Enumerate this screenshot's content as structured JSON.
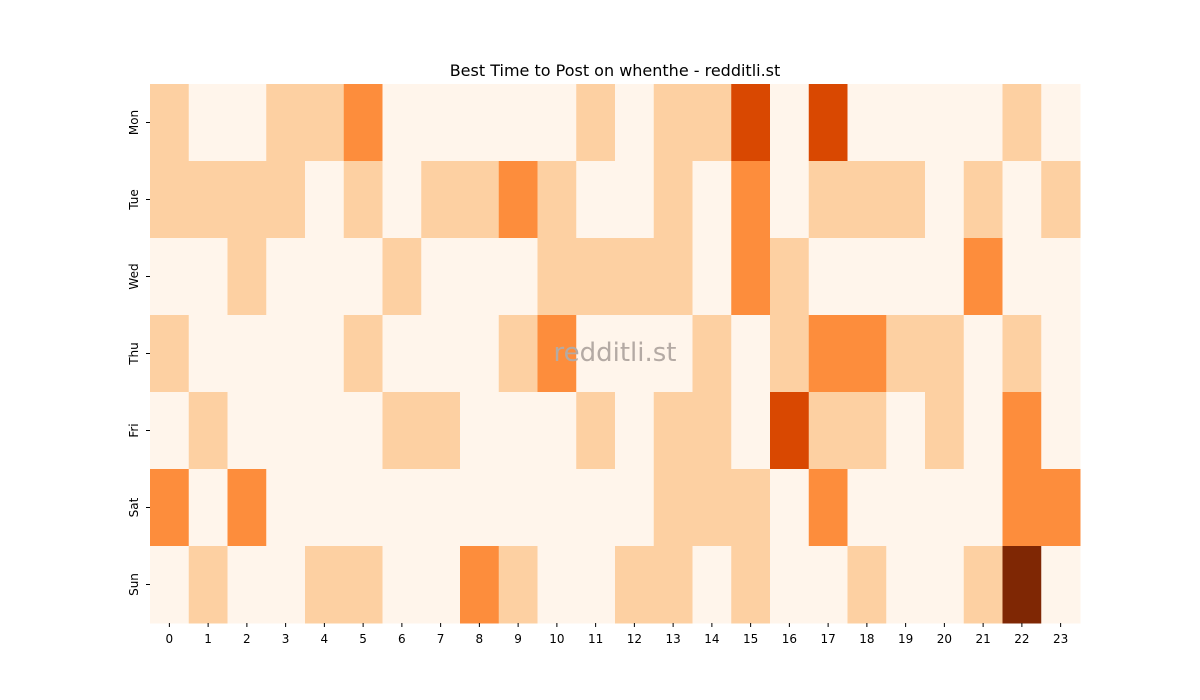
{
  "chart_data": {
    "type": "heatmap",
    "title": "Best Time to Post on whenthe - redditli.st",
    "watermark": "redditli.st",
    "x_categories": [
      "0",
      "1",
      "2",
      "3",
      "4",
      "5",
      "6",
      "7",
      "8",
      "9",
      "10",
      "11",
      "12",
      "13",
      "14",
      "15",
      "16",
      "17",
      "18",
      "19",
      "20",
      "21",
      "22",
      "23"
    ],
    "y_categories": [
      "Mon",
      "Tue",
      "Wed",
      "Thu",
      "Fri",
      "Sat",
      "Sun"
    ],
    "values": [
      [
        1,
        0,
        0,
        1,
        1,
        2,
        0,
        0,
        0,
        0,
        0,
        1,
        0,
        1,
        1,
        3,
        0,
        3,
        0,
        0,
        0,
        0,
        1,
        0
      ],
      [
        1,
        1,
        1,
        1,
        0,
        1,
        0,
        1,
        1,
        2,
        1,
        0,
        0,
        1,
        0,
        2,
        0,
        1,
        1,
        1,
        0,
        1,
        0,
        1
      ],
      [
        0,
        0,
        1,
        0,
        0,
        0,
        1,
        0,
        0,
        0,
        1,
        1,
        1,
        1,
        0,
        2,
        1,
        0,
        0,
        0,
        0,
        2,
        0,
        0
      ],
      [
        1,
        0,
        0,
        0,
        0,
        1,
        0,
        0,
        0,
        1,
        2,
        0,
        0,
        0,
        1,
        0,
        1,
        2,
        2,
        1,
        1,
        0,
        1,
        0
      ],
      [
        0,
        1,
        0,
        0,
        0,
        0,
        1,
        1,
        0,
        0,
        0,
        1,
        0,
        1,
        1,
        0,
        3,
        1,
        1,
        0,
        1,
        0,
        2,
        0
      ],
      [
        2,
        0,
        2,
        0,
        0,
        0,
        0,
        0,
        0,
        0,
        0,
        0,
        0,
        1,
        1,
        1,
        0,
        2,
        0,
        0,
        0,
        0,
        2,
        2
      ],
      [
        0,
        1,
        0,
        0,
        1,
        1,
        0,
        0,
        2,
        1,
        0,
        0,
        1,
        1,
        0,
        1,
        0,
        0,
        1,
        0,
        0,
        1,
        4,
        0
      ]
    ],
    "colormap": [
      "#fff5eb",
      "#fdd0a2",
      "#fd8d3c",
      "#d94801",
      "#7f2704"
    ],
    "xlabel": "",
    "ylabel": ""
  }
}
